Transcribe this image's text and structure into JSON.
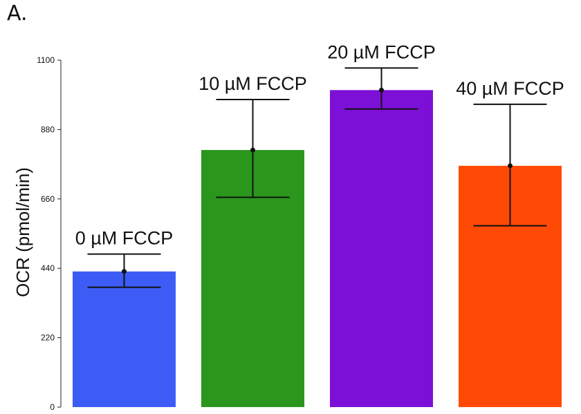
{
  "panel_label": "A.",
  "chart_data": {
    "type": "bar",
    "title": "",
    "xlabel": "",
    "ylabel": "OCR (pmol/min)",
    "ylim": [
      0,
      1100
    ],
    "yticks": [
      0,
      220,
      440,
      660,
      880,
      1100
    ],
    "grid": false,
    "categories": [
      "0 µM FCCP",
      "10 µM FCCP",
      "20 µM FCCP",
      "40 µM FCCP"
    ],
    "values": [
      430,
      815,
      1005,
      765
    ],
    "error_low": [
      380,
      665,
      945,
      575
    ],
    "error_high": [
      485,
      975,
      1075,
      960
    ],
    "colors": [
      "#3d5cf5",
      "#2a961c",
      "#7c10d6",
      "#ff4a06"
    ]
  }
}
